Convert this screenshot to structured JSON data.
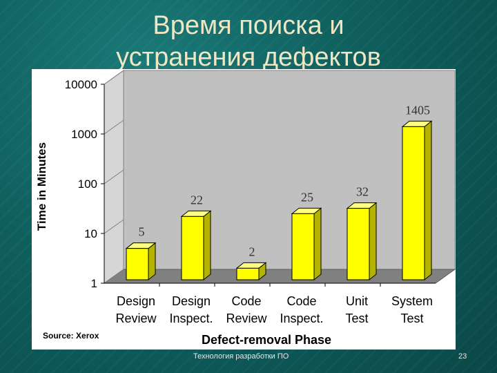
{
  "slide": {
    "title_line1": "Время поиска и",
    "title_line2": "устранения дефектов",
    "footer": "Технология разработки ПО",
    "page_number": "23",
    "source": "Source: Xerox"
  },
  "chart_data": {
    "type": "bar",
    "title": "",
    "xlabel": "Defect-removal Phase",
    "ylabel": "Time in Minutes",
    "scale": "log",
    "ylim": [
      1,
      10000
    ],
    "yticks": [
      "1",
      "10",
      "100",
      "1000",
      "10000"
    ],
    "categories": [
      [
        "Design",
        "Review"
      ],
      [
        "Design",
        "Inspect."
      ],
      [
        "Code",
        "Review"
      ],
      [
        "Code",
        "Inspect."
      ],
      [
        "Unit",
        "Test"
      ],
      [
        "System",
        "Test"
      ]
    ],
    "values": [
      5,
      22,
      2,
      25,
      32,
      1405
    ],
    "value_labels": [
      "5",
      "22",
      "2",
      "25",
      "32",
      "1405"
    ],
    "bar_color": "#ffff00",
    "wall_color": "#c0c0c0",
    "floor_color": "#808080"
  }
}
